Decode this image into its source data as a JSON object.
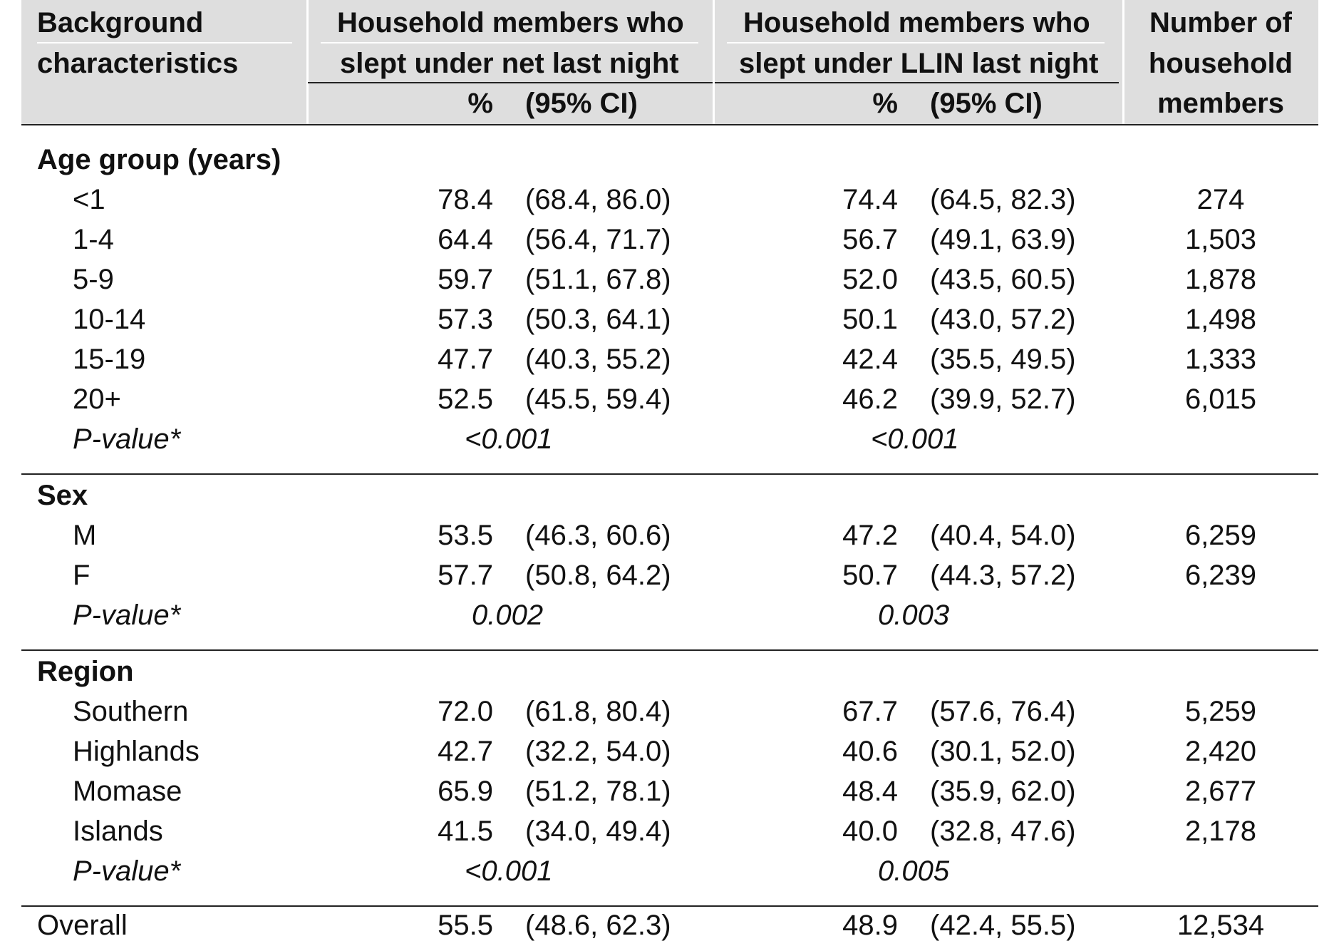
{
  "header": {
    "background_label_1": "Background",
    "background_label_2": "characteristics",
    "net_title_1": "Household members who",
    "net_title_2": "slept under net last night",
    "llin_title_1": "Household members who",
    "llin_title_2": "slept under LLIN last night",
    "count_title_1": "Number  of",
    "count_title_2": "household",
    "count_title_3": "members",
    "pct_label": "%",
    "ci_label": "(95% CI)"
  },
  "age": {
    "title": "Age group (years)",
    "rows": [
      {
        "label": "<1",
        "net_pct": "78.4",
        "net_ci": "(68.4, 86.0)",
        "llin_pct": "74.4",
        "llin_ci": "(64.5, 82.3)",
        "n": "274"
      },
      {
        "label": "1-4",
        "net_pct": "64.4",
        "net_ci": "(56.4, 71.7)",
        "llin_pct": "56.7",
        "llin_ci": "(49.1, 63.9)",
        "n": "1,503"
      },
      {
        "label": "5-9",
        "net_pct": "59.7",
        "net_ci": "(51.1, 67.8)",
        "llin_pct": "52.0",
        "llin_ci": "(43.5, 60.5)",
        "n": "1,878"
      },
      {
        "label": "10-14",
        "net_pct": "57.3",
        "net_ci": "(50.3, 64.1)",
        "llin_pct": "50.1",
        "llin_ci": "(43.0, 57.2)",
        "n": "1,498"
      },
      {
        "label": "15-19",
        "net_pct": "47.7",
        "net_ci": "(40.3, 55.2)",
        "llin_pct": "42.4",
        "llin_ci": "(35.5, 49.5)",
        "n": "1,333"
      },
      {
        "label": "20+",
        "net_pct": "52.5",
        "net_ci": "(45.5, 59.4)",
        "llin_pct": "46.2",
        "llin_ci": "(39.9, 52.7)",
        "n": "6,015"
      }
    ],
    "pvalue_label": "P-value*",
    "pvalue_net": "<0.001",
    "pvalue_llin": "<0.001"
  },
  "sex": {
    "title": "Sex",
    "rows": [
      {
        "label": "M",
        "net_pct": "53.5",
        "net_ci": "(46.3, 60.6)",
        "llin_pct": "47.2",
        "llin_ci": "(40.4, 54.0)",
        "n": "6,259"
      },
      {
        "label": "F",
        "net_pct": "57.7",
        "net_ci": "(50.8, 64.2)",
        "llin_pct": "50.7",
        "llin_ci": "(44.3, 57.2)",
        "n": "6,239"
      }
    ],
    "pvalue_label": "P-value*",
    "pvalue_net": "0.002",
    "pvalue_llin": "0.003"
  },
  "region": {
    "title": "Region",
    "rows": [
      {
        "label": "Southern",
        "net_pct": "72.0",
        "net_ci": "(61.8, 80.4)",
        "llin_pct": "67.7",
        "llin_ci": "(57.6, 76.4)",
        "n": "5,259"
      },
      {
        "label": "Highlands",
        "net_pct": "42.7",
        "net_ci": "(32.2, 54.0)",
        "llin_pct": "40.6",
        "llin_ci": "(30.1, 52.0)",
        "n": "2,420"
      },
      {
        "label": "Momase",
        "net_pct": "65.9",
        "net_ci": "(51.2, 78.1)",
        "llin_pct": "48.4",
        "llin_ci": "(35.9, 62.0)",
        "n": "2,677"
      },
      {
        "label": "Islands",
        "net_pct": "41.5",
        "net_ci": "(34.0, 49.4)",
        "llin_pct": "40.0",
        "llin_ci": "(32.8, 47.6)",
        "n": "2,178"
      }
    ],
    "pvalue_label": "P-value*",
    "pvalue_net": "<0.001",
    "pvalue_llin": "0.005"
  },
  "overall": {
    "label": "Overall",
    "net_pct": "55.5",
    "net_ci": "(48.6, 62.3)",
    "llin_pct": "48.9",
    "llin_ci": "(42.4, 55.5)",
    "n": "12,534"
  }
}
